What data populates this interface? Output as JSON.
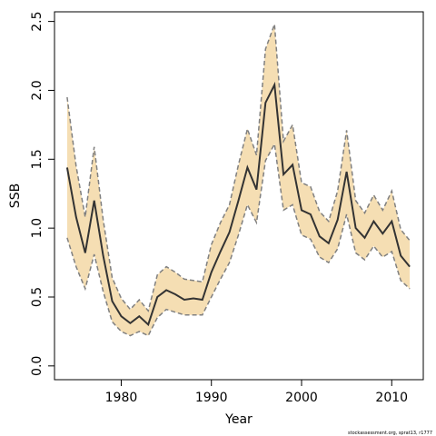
{
  "chart_data": {
    "type": "line",
    "xlabel": "Year",
    "ylabel": "SSB",
    "footnote": "stockassessment.org, sprat13, r1777",
    "xlim": [
      1972.6,
      2013.5
    ],
    "ylim": [
      -0.1,
      2.57
    ],
    "x_ticks": [
      1980,
      1990,
      2000,
      2010
    ],
    "x_tick_labels": [
      "1980",
      "1990",
      "2000",
      "2010"
    ],
    "y_ticks": [
      0.0,
      0.5,
      1.0,
      1.5,
      2.0,
      2.5
    ],
    "y_tick_labels": [
      "0.0",
      "0.5",
      "1.0",
      "1.5",
      "2.0",
      "2.5"
    ],
    "grid": false,
    "colors": {
      "band": "#F5DEB3",
      "line": "#333333",
      "bounds": "#808080"
    },
    "x": [
      1974,
      1975,
      1976,
      1977,
      1978,
      1979,
      1980,
      1981,
      1982,
      1983,
      1984,
      1985,
      1986,
      1987,
      1988,
      1989,
      1990,
      1991,
      1992,
      1993,
      1994,
      1995,
      1996,
      1997,
      1998,
      1999,
      2000,
      2001,
      2002,
      2003,
      2004,
      2005,
      2006,
      2007,
      2008,
      2009,
      2010,
      2011,
      2012
    ],
    "series": [
      {
        "role": "estimate",
        "values": [
          1.44,
          1.08,
          0.82,
          1.2,
          0.8,
          0.47,
          0.36,
          0.31,
          0.36,
          0.3,
          0.5,
          0.55,
          0.52,
          0.48,
          0.49,
          0.48,
          0.68,
          0.83,
          0.97,
          1.2,
          1.44,
          1.28,
          1.91,
          2.04,
          1.39,
          1.46,
          1.13,
          1.1,
          0.94,
          0.89,
          1.06,
          1.41,
          1.0,
          0.93,
          1.05,
          0.96,
          1.05,
          0.8,
          0.72
        ]
      },
      {
        "role": "upper",
        "values": [
          1.95,
          1.45,
          1.08,
          1.59,
          1.06,
          0.64,
          0.49,
          0.41,
          0.48,
          0.4,
          0.66,
          0.72,
          0.68,
          0.63,
          0.62,
          0.61,
          0.88,
          1.04,
          1.17,
          1.46,
          1.72,
          1.53,
          2.3,
          2.48,
          1.63,
          1.75,
          1.33,
          1.3,
          1.12,
          1.05,
          1.27,
          1.71,
          1.2,
          1.11,
          1.24,
          1.13,
          1.27,
          0.99,
          0.91
        ]
      },
      {
        "role": "lower",
        "values": [
          0.93,
          0.72,
          0.56,
          0.81,
          0.54,
          0.32,
          0.25,
          0.22,
          0.25,
          0.22,
          0.35,
          0.41,
          0.39,
          0.37,
          0.37,
          0.37,
          0.5,
          0.63,
          0.75,
          0.95,
          1.17,
          1.04,
          1.49,
          1.61,
          1.13,
          1.17,
          0.95,
          0.92,
          0.79,
          0.75,
          0.85,
          1.1,
          0.82,
          0.77,
          0.87,
          0.79,
          0.83,
          0.62,
          0.56
        ]
      }
    ]
  }
}
